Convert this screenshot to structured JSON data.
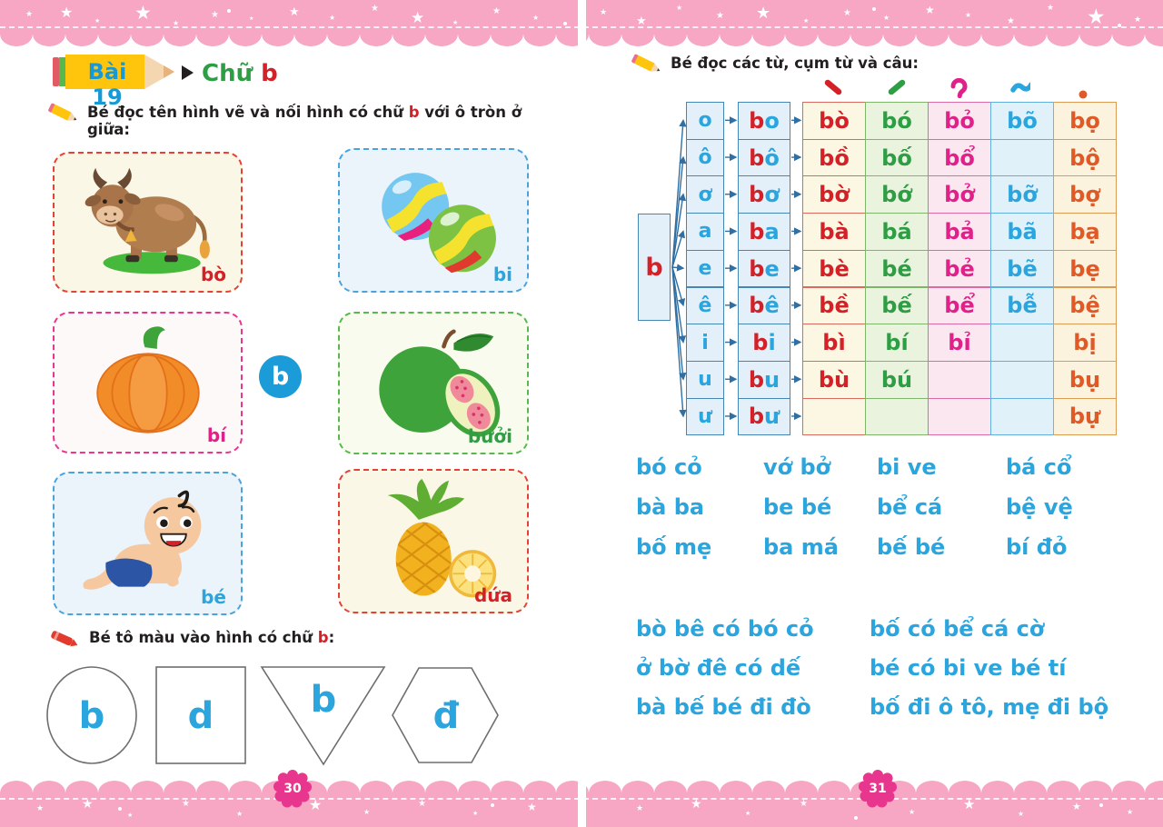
{
  "colors": {
    "border_pink": "#F7A6C3",
    "badge_pink": "#E8368F",
    "blue": "#2AA5DE",
    "red": "#D42027",
    "green": "#2E9E44",
    "magenta": "#E0218A",
    "orange": "#E05A28",
    "circle_blue": "#1B9CD8"
  },
  "left_page": {
    "page_number": "30",
    "lesson_badge": "Bài 19",
    "lesson_title_word": "Chữ",
    "lesson_title_letter": "b",
    "instruction1": {
      "pre": "Bé đọc tên hình vẽ và nối hình có chữ ",
      "highlight": "b",
      "post": " với ô tròn ở giữa:"
    },
    "center_letter": "b",
    "cards": [
      {
        "label": "bò",
        "image": "cow",
        "color": "red"
      },
      {
        "label": "bi",
        "image": "marbles",
        "color": "blue"
      },
      {
        "label": "bí",
        "image": "pumpkin",
        "color": "magenta"
      },
      {
        "label": "bưởi",
        "image": "guava",
        "color": "green"
      },
      {
        "label": "bé",
        "image": "baby",
        "color": "blue"
      },
      {
        "label": "dứa",
        "image": "pineapple",
        "color": "red"
      }
    ],
    "instruction2": {
      "pre": "Bé tô màu vào hình có chữ ",
      "highlight": "b",
      "post": ":"
    },
    "shapes": [
      {
        "shape": "circle",
        "letter": "b"
      },
      {
        "shape": "square",
        "letter": "d"
      },
      {
        "shape": "triangle",
        "letter": "b"
      },
      {
        "shape": "hexagon",
        "letter": "đ"
      }
    ]
  },
  "right_page": {
    "page_number": "31",
    "instruction": "Bé đọc các từ, cụm từ và câu:",
    "tone_marks": [
      {
        "name": "huyền",
        "symbol": "̀",
        "color": "#D42027"
      },
      {
        "name": "sắc",
        "symbol": "́",
        "color": "#2E9E44"
      },
      {
        "name": "hỏi",
        "symbol": "̉",
        "color": "#E0218A"
      },
      {
        "name": "ngã",
        "symbol": "̃",
        "color": "#2AA5DE"
      },
      {
        "name": "nặng",
        "symbol": "̣",
        "color": "#E05A28"
      }
    ],
    "table": {
      "initial": "b",
      "rows": [
        {
          "vowel": "o",
          "syllable": "bo",
          "tones": [
            "bò",
            "bó",
            "bỏ",
            "bõ",
            "bọ"
          ]
        },
        {
          "vowel": "ô",
          "syllable": "bô",
          "tones": [
            "bồ",
            "bố",
            "bổ",
            "",
            "bộ"
          ]
        },
        {
          "vowel": "ơ",
          "syllable": "bơ",
          "tones": [
            "bờ",
            "bớ",
            "bở",
            "bỡ",
            "bợ"
          ]
        },
        {
          "vowel": "a",
          "syllable": "ba",
          "tones": [
            "bà",
            "bá",
            "bả",
            "bã",
            "bạ"
          ]
        },
        {
          "vowel": "e",
          "syllable": "be",
          "tones": [
            "bè",
            "bé",
            "bẻ",
            "bẽ",
            "bẹ"
          ]
        },
        {
          "vowel": "ê",
          "syllable": "bê",
          "tones": [
            "bề",
            "bế",
            "bể",
            "bễ",
            "bệ"
          ]
        },
        {
          "vowel": "i",
          "syllable": "bi",
          "tones": [
            "bì",
            "bí",
            "bỉ",
            "",
            "bị"
          ]
        },
        {
          "vowel": "u",
          "syllable": "bu",
          "tones": [
            "bù",
            "bú",
            "",
            "",
            "bụ"
          ]
        },
        {
          "vowel": "ư",
          "syllable": "bư",
          "tones": [
            "",
            "",
            "",
            "",
            "bự"
          ]
        }
      ]
    },
    "words": [
      [
        "bó cỏ",
        "vớ bở",
        "bi ve",
        "bá cổ"
      ],
      [
        "bà ba",
        "be bé",
        "bể cá",
        "bệ vệ"
      ],
      [
        "bố mẹ",
        "ba má",
        "bế bé",
        "bí đỏ"
      ]
    ],
    "sentences": [
      [
        "bò bê có bó cỏ",
        "ở bờ đê có dế",
        "bà bế bé đi đò"
      ],
      [
        "bố có bể cá cờ",
        "bé có bi ve bé tí",
        "bố đi ô tô, mẹ đi bộ"
      ]
    ]
  }
}
